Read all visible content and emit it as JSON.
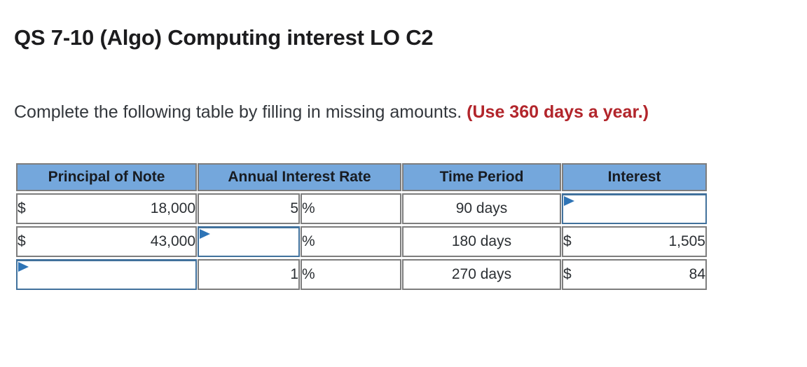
{
  "page": {
    "title": "QS 7-10 (Algo) Computing interest LO C2",
    "instruction": "Complete the following table by filling in missing amounts.",
    "instruction_emphasis": "(Use 360 days a year.)"
  },
  "colors": {
    "header_bg": "#74a7dc",
    "table_border": "#7d7d7d",
    "input_border": "#41719c",
    "flag_blue": "#2e74b6",
    "emphasis_red": "#b2252b",
    "title_text": "#1c1c1e",
    "body_text": "#33373c"
  },
  "table": {
    "headers": {
      "principal": "Principal of Note",
      "rate": "Annual Interest Rate",
      "time": "Time Period",
      "interest": "Interest"
    },
    "rows": [
      {
        "principal_currency": "$",
        "principal_amount": "18,000",
        "rate_value": "5",
        "percent_sign": "%",
        "time_period": "90 days",
        "interest_input_value": ""
      },
      {
        "principal_currency": "$",
        "principal_amount": "43,000",
        "rate_input_value": "",
        "percent_sign": "%",
        "time_period": "180 days",
        "interest_currency": "$",
        "interest_amount": "1,505"
      },
      {
        "principal_input_value": "",
        "rate_value": "1",
        "percent_sign": "%",
        "time_period": "270 days",
        "interest_currency": "$",
        "interest_amount": "84"
      }
    ]
  }
}
